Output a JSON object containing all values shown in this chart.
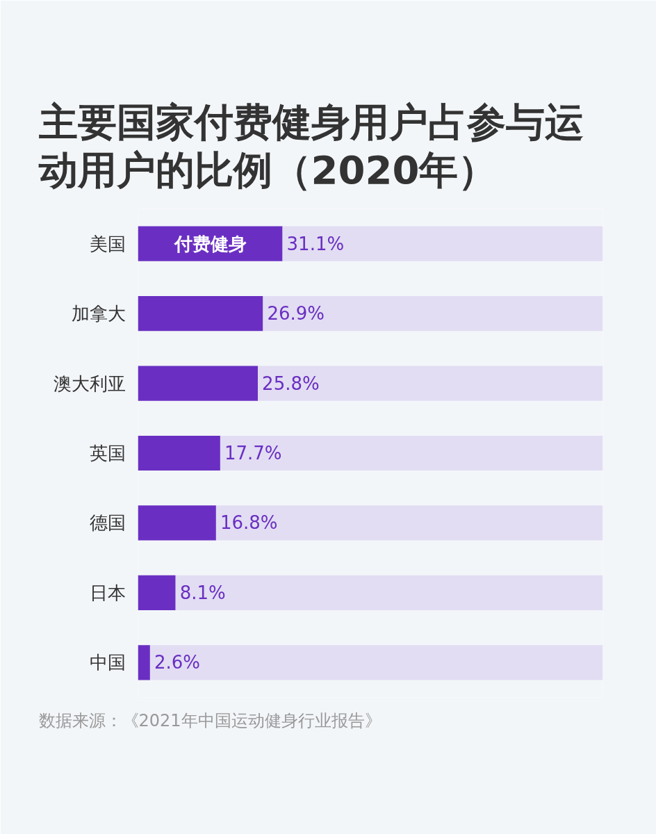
{
  "chart_data": {
    "type": "bar",
    "orientation": "horizontal",
    "stacked": true,
    "title": "主要国家付费健身用户占参与运动用户的比例（2020年）",
    "categories": [
      "美国",
      "加拿大",
      "澳大利亚",
      "英国",
      "德国",
      "日本",
      "中国"
    ],
    "series": [
      {
        "name": "付费健身",
        "color": "#6a2fc2",
        "values": [
          31.1,
          26.9,
          25.8,
          17.7,
          16.8,
          8.1,
          2.6
        ],
        "value_labels": [
          "31.1%",
          "26.9%",
          "25.8%",
          "17.7%",
          "16.8%",
          "8.1%",
          "2.6%"
        ]
      },
      {
        "color": "#e2ddf3",
        "values": [
          68.9,
          73.1,
          74.2,
          82.3,
          83.2,
          91.9,
          97.4
        ]
      }
    ],
    "xlim": [
      0,
      100
    ],
    "tick_labels": "y",
    "annotations": [
      "数据来源：《2021年中国运动健身行业报告》"
    ]
  }
}
